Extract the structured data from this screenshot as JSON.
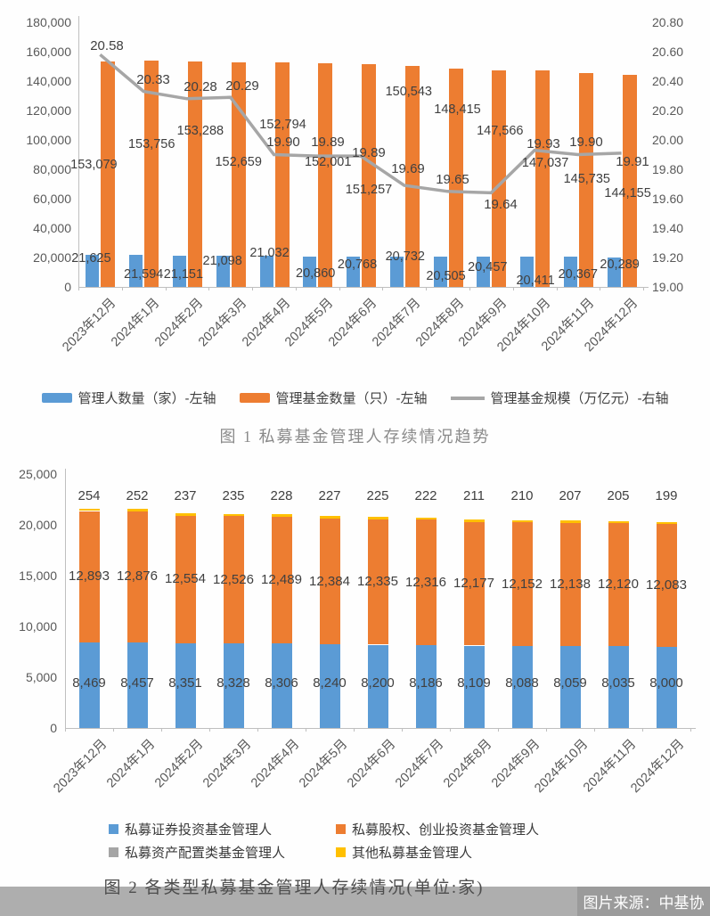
{
  "source_note": "图片来源：中基协",
  "colors": {
    "securities_blue": "#5B9BD5",
    "equity_orange": "#ED7D31",
    "scale_line_gray": "#A6A6A6",
    "allocation_gray": "#A5A5A5",
    "other_yellow": "#FFC000",
    "axis_gray": "#BFBFBF",
    "caption_band_gray": "#AEAEAE",
    "source_badge_gray": "#9B9B9B"
  },
  "chart_data": [
    {
      "type": "bar+line",
      "title": "图 1 私募基金管理人存续情况趋势",
      "categories": [
        "2023年12月",
        "2024年1月",
        "2024年2月",
        "2024年3月",
        "2024年4月",
        "2024年5月",
        "2024年6月",
        "2024年7月",
        "2024年8月",
        "2024年9月",
        "2024年10月",
        "2024年11月",
        "2024年12月"
      ],
      "series": [
        {
          "name": "管理人数量（家）-左轴",
          "type": "bar",
          "axis": "left",
          "color": "#5B9BD5",
          "values": [
            21625,
            21594,
            21151,
            21098,
            21032,
            20860,
            20768,
            20732,
            20505,
            20457,
            20411,
            20367,
            20289
          ]
        },
        {
          "name": "管理基金数量（只）-左轴",
          "type": "bar",
          "axis": "left",
          "color": "#ED7D31",
          "values": [
            153079,
            153756,
            153288,
            152659,
            152794,
            152001,
            151257,
            150543,
            148415,
            147566,
            147037,
            145735,
            144155
          ]
        },
        {
          "name": "管理基金规模（万亿元）-右轴",
          "type": "line",
          "axis": "right",
          "color": "#A6A6A6",
          "values": [
            20.58,
            20.33,
            20.28,
            20.29,
            19.9,
            19.89,
            19.89,
            19.69,
            19.65,
            19.64,
            19.93,
            19.9,
            19.91
          ]
        }
      ],
      "left_axis": {
        "min": 0,
        "max": 180000,
        "step": 20000,
        "ticks": [
          "0",
          "20,000",
          "40,000",
          "60,000",
          "80,000",
          "100,000",
          "120,000",
          "140,000",
          "160,000",
          "180,000"
        ]
      },
      "right_axis": {
        "min": 19.0,
        "max": 20.8,
        "step": 0.2,
        "ticks": [
          "19.00",
          "19.20",
          "19.40",
          "19.60",
          "19.80",
          "20.00",
          "20.20",
          "20.40",
          "20.60",
          "20.80"
        ]
      },
      "grid": false,
      "legend_position": "bottom"
    },
    {
      "type": "stacked-bar",
      "title": "图 2 各类型私募基金管理人存续情况(单位:家)",
      "categories": [
        "2023年12月",
        "2024年1月",
        "2024年2月",
        "2024年3月",
        "2024年4月",
        "2024年5月",
        "2024年6月",
        "2024年7月",
        "2024年8月",
        "2024年9月",
        "2024年10月",
        "2024年11月",
        "2024年12月"
      ],
      "series": [
        {
          "name": "私募证券投资基金管理人",
          "color": "#5B9BD5",
          "values": [
            8469,
            8457,
            8351,
            8328,
            8306,
            8240,
            8200,
            8186,
            8109,
            8088,
            8059,
            8035,
            8000
          ]
        },
        {
          "name": "私募股权、创业投资基金管理人",
          "color": "#ED7D31",
          "values": [
            12893,
            12876,
            12554,
            12526,
            12489,
            12384,
            12335,
            12316,
            12177,
            12152,
            12138,
            12120,
            12083
          ]
        },
        {
          "name": "私募资产配置类基金管理人",
          "color": "#A5A5A5",
          "values": null
        },
        {
          "name": "其他私募基金管理人",
          "color": "#FFC000",
          "values": [
            254,
            252,
            237,
            235,
            228,
            227,
            225,
            222,
            211,
            210,
            207,
            205,
            199
          ]
        }
      ],
      "y_axis": {
        "min": 0,
        "max": 25000,
        "step": 5000,
        "ticks": [
          "0",
          "5,000",
          "10,000",
          "15,000",
          "20,000",
          "25,000"
        ]
      },
      "grid": false,
      "legend_position": "bottom"
    }
  ]
}
